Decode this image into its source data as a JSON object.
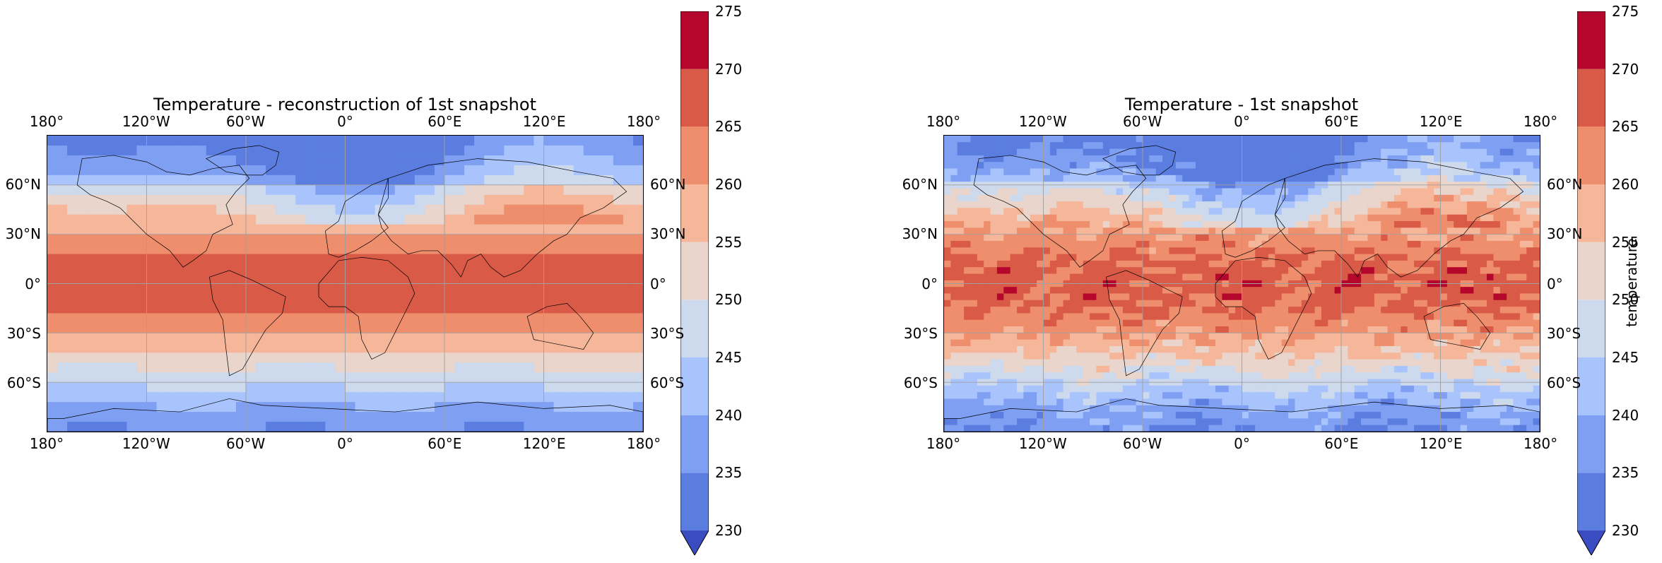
{
  "panels": [
    {
      "title": "Temperature - reconstruction of 1st snapshot",
      "colorbar_label": "",
      "variant": "smooth"
    },
    {
      "title": "Temperature - 1st snapshot",
      "colorbar_label": "temperature",
      "variant": "detailed"
    }
  ],
  "lon_ticks": [
    "180°",
    "120°W",
    "60°W",
    "0°",
    "60°E",
    "120°E",
    "180°"
  ],
  "lat_ticks": [
    "60°N",
    "30°N",
    "0°",
    "30°S",
    "60°S"
  ],
  "colorbar": {
    "levels": [
      230,
      235,
      240,
      245,
      250,
      255,
      260,
      265,
      270,
      275
    ],
    "tick_labels": [
      "230",
      "235",
      "240",
      "245",
      "250",
      "255",
      "260",
      "265",
      "270",
      "275"
    ],
    "colors": [
      "#5b7de0",
      "#7f9ff3",
      "#a9c4fc",
      "#cdd9ec",
      "#e9d5cb",
      "#f6b69a",
      "#ef8e6d",
      "#d95a46",
      "#b5062b"
    ],
    "extend_color": "#3b4cc0",
    "extend": "min"
  }
}
